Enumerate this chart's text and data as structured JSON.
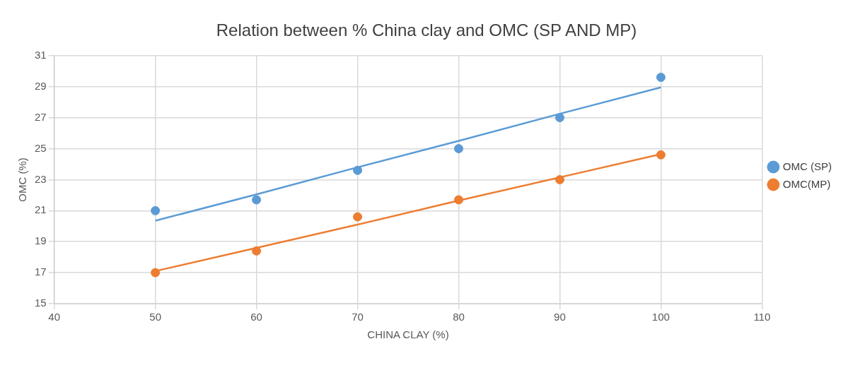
{
  "chart_data": {
    "type": "scatter",
    "title": "Relation between % China clay and OMC (SP AND MP)",
    "xlabel": "CHINA CLAY (%)",
    "ylabel": "OMC (%)",
    "x": [
      50,
      60,
      70,
      80,
      90,
      100
    ],
    "series": [
      {
        "name": "OMC (SP)",
        "color": "#5b9bd5",
        "values": [
          21,
          21.7,
          23.6,
          25,
          27,
          29.6
        ]
      },
      {
        "name": "OMC(MP)",
        "color": "#ed7d31",
        "values": [
          17,
          18.4,
          20.6,
          21.7,
          23,
          24.6
        ]
      },
      {
        "type": "line",
        "color": "#5b9bd5",
        "values": [
          20.35,
          22.05,
          23.8,
          25.5,
          27.25,
          28.95
        ],
        "marker": "none"
      },
      {
        "type": "line",
        "color": "#ed7d31",
        "values": [
          17.1,
          18.6,
          20.1,
          21.65,
          23.15,
          24.65
        ],
        "marker": "none"
      }
    ],
    "xlim": [
      40,
      110
    ],
    "xticks": [
      40,
      50,
      60,
      70,
      80,
      90,
      100,
      110
    ],
    "ylim": [
      15,
      31
    ],
    "yticks": [
      15,
      17,
      19,
      21,
      23,
      25,
      27,
      29,
      31
    ],
    "grid": true,
    "legend": "right",
    "marker": "circle"
  }
}
